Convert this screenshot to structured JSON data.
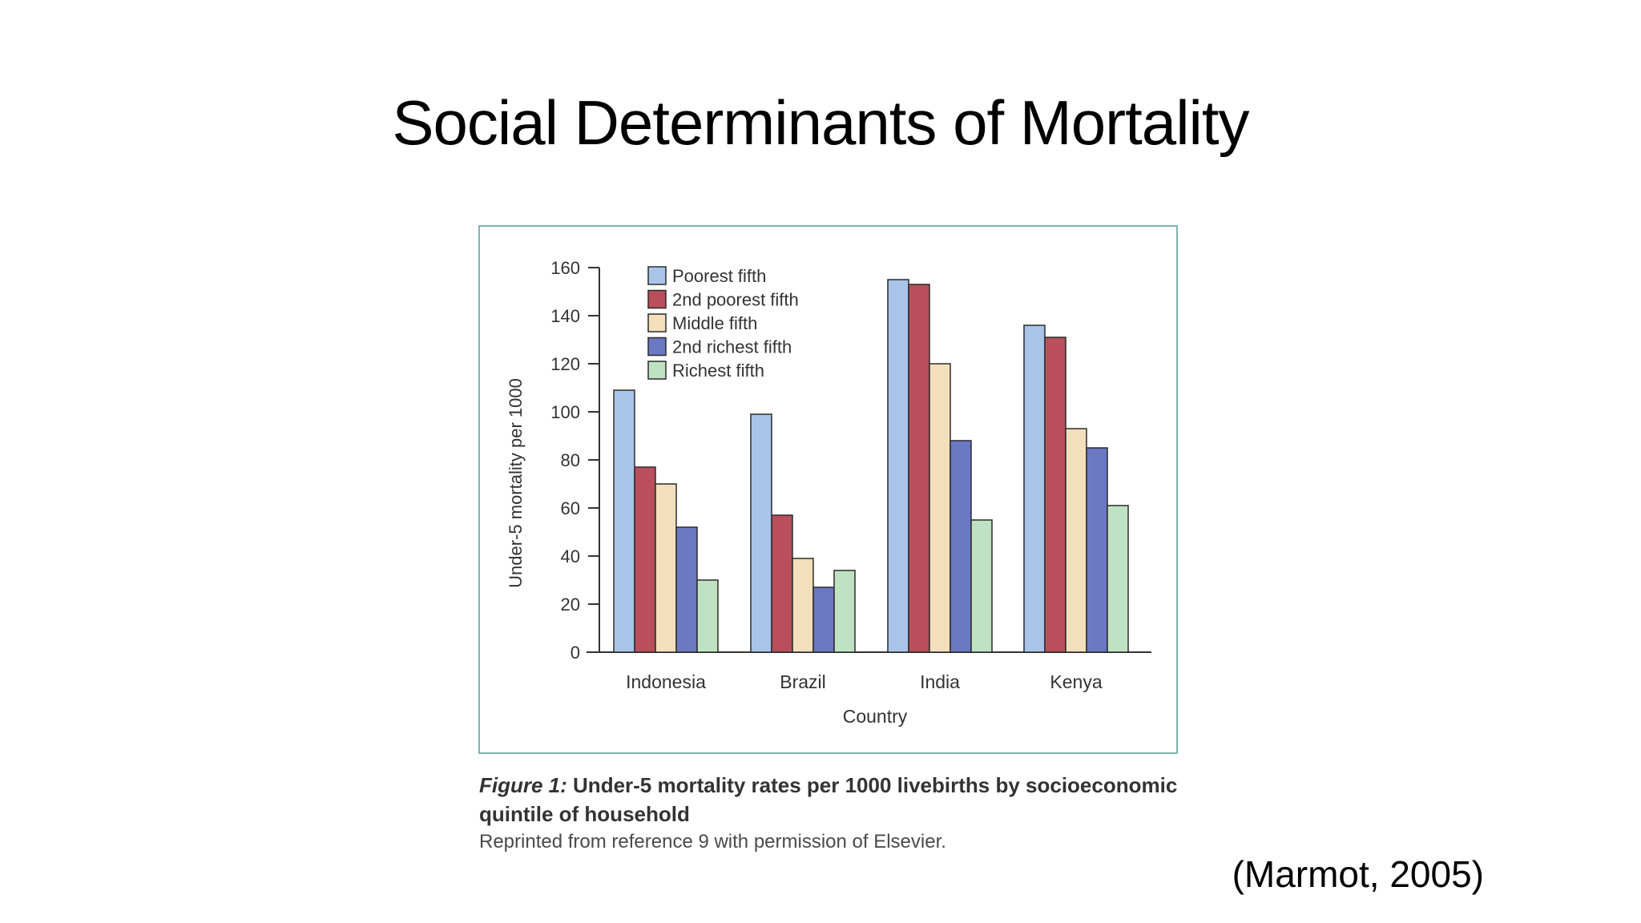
{
  "slide": {
    "title": "Social Determinants of Mortality",
    "citation": "(Marmot, 2005)"
  },
  "caption": {
    "figure_label": "Figure 1:",
    "figure_title": "Under-5 mortality rates per 1000 livebirths by socioeconomic quintile of household",
    "source_note": "Reprinted from reference 9 with permission of Elsevier."
  },
  "chart_data": {
    "type": "bar",
    "title": "",
    "xlabel": "Country",
    "ylabel": "Under-5 mortality per 1000",
    "ylim": [
      0,
      160
    ],
    "yticks": [
      0,
      20,
      40,
      60,
      80,
      100,
      120,
      140,
      160
    ],
    "grid": false,
    "legend_position": "top-left",
    "categories": [
      "Indonesia",
      "Brazil",
      "India",
      "Kenya"
    ],
    "series": [
      {
        "name": "Poorest fifth",
        "color": "#a9c4e8",
        "values": [
          109,
          99,
          155,
          136
        ]
      },
      {
        "name": "2nd poorest fifth",
        "color": "#b84f5a",
        "values": [
          77,
          57,
          153,
          131
        ]
      },
      {
        "name": "Middle fifth",
        "color": "#f3dfbb",
        "values": [
          70,
          39,
          120,
          93
        ]
      },
      {
        "name": "2nd richest fifth",
        "color": "#6b78c2",
        "values": [
          52,
          27,
          88,
          85
        ]
      },
      {
        "name": "Richest fifth",
        "color": "#bfe3c2",
        "values": [
          30,
          34,
          55,
          61
        ]
      }
    ]
  }
}
